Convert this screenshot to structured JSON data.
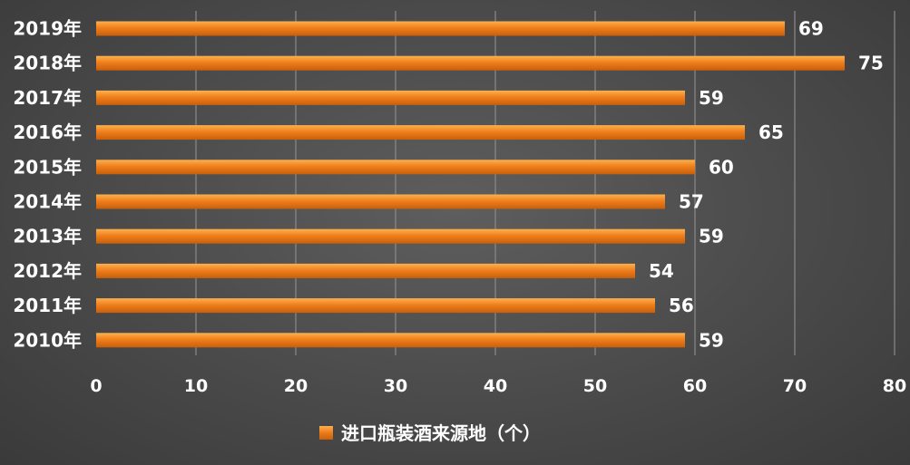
{
  "chart_data": {
    "type": "bar",
    "orientation": "horizontal",
    "categories": [
      "2019年",
      "2018年",
      "2017年",
      "2016年",
      "2015年",
      "2014年",
      "2013年",
      "2012年",
      "2011年",
      "2010年"
    ],
    "series": [
      {
        "name": "进口瓶装酒来源地（个）",
        "values": [
          69,
          75,
          59,
          65,
          60,
          57,
          59,
          54,
          56,
          59
        ]
      }
    ],
    "xlim": [
      0,
      80
    ],
    "xticks": [
      0,
      10,
      20,
      30,
      40,
      50,
      60,
      70,
      80
    ],
    "grid": "vertical",
    "data_labels": true,
    "legend_position": "bottom",
    "colors": {
      "bar": "#f07f1c",
      "bar_highlight": "#fbb14e",
      "bar_shadow": "#c85f0a",
      "grid": "#8a8a8a",
      "text": "#ffffff"
    }
  }
}
